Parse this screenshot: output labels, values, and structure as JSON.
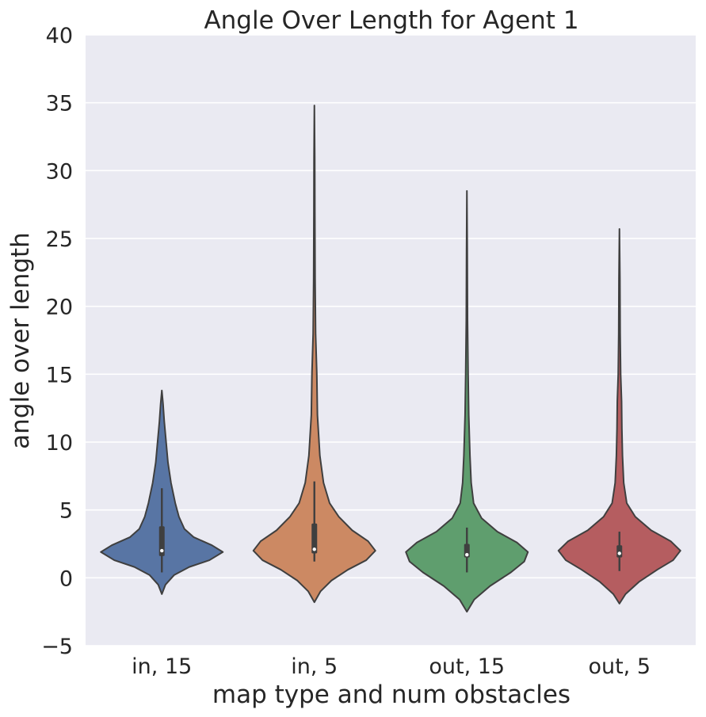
{
  "chart_data": {
    "type": "violin",
    "title": "Angle Over Length for Agent 1",
    "xlabel": "map type and num obstacles",
    "ylabel": "angle over length",
    "ylim": [
      -5,
      40
    ],
    "yticks": [
      -5,
      0,
      5,
      10,
      15,
      20,
      25,
      30,
      35,
      40
    ],
    "ytick_labels": [
      "−5",
      "0",
      "5",
      "10",
      "15",
      "20",
      "25",
      "30",
      "35",
      "40"
    ],
    "categories": [
      "in, 15",
      "in, 5",
      "out, 15",
      "out, 5"
    ],
    "grid": true,
    "background": "#eaeaf2",
    "violins": [
      {
        "category": "in, 15",
        "color": "#5875a4",
        "min": -1.2,
        "max": 13.8,
        "q1": 1.6,
        "median": 2.0,
        "q3": 3.8,
        "whisker_low": 0.4,
        "whisker_high": 6.6,
        "density": [
          [
            -1.2,
            0.0
          ],
          [
            -0.5,
            0.06
          ],
          [
            0.2,
            0.2
          ],
          [
            0.8,
            0.45
          ],
          [
            1.3,
            0.78
          ],
          [
            1.9,
            1.0
          ],
          [
            2.4,
            0.82
          ],
          [
            3.0,
            0.52
          ],
          [
            3.6,
            0.37
          ],
          [
            4.5,
            0.28
          ],
          [
            5.5,
            0.22
          ],
          [
            7.0,
            0.15
          ],
          [
            8.5,
            0.1
          ],
          [
            10.0,
            0.07
          ],
          [
            11.5,
            0.04
          ],
          [
            12.8,
            0.02
          ],
          [
            13.8,
            0.0
          ]
        ]
      },
      {
        "category": "in, 5",
        "color": "#cc8963",
        "min": -1.8,
        "max": 34.8,
        "q1": 1.8,
        "median": 2.1,
        "q3": 4.0,
        "whisker_low": 1.2,
        "whisker_high": 7.1,
        "density": [
          [
            -1.8,
            0.0
          ],
          [
            -1.0,
            0.1
          ],
          [
            -0.2,
            0.28
          ],
          [
            0.6,
            0.55
          ],
          [
            1.3,
            0.85
          ],
          [
            2.0,
            1.0
          ],
          [
            2.7,
            0.88
          ],
          [
            3.5,
            0.62
          ],
          [
            4.5,
            0.4
          ],
          [
            5.5,
            0.25
          ],
          [
            7.0,
            0.15
          ],
          [
            9.0,
            0.09
          ],
          [
            12.0,
            0.05
          ],
          [
            15.0,
            0.04
          ],
          [
            18.0,
            0.02
          ],
          [
            22.0,
            0.012
          ],
          [
            27.0,
            0.008
          ],
          [
            31.0,
            0.006
          ],
          [
            34.8,
            0.0
          ]
        ]
      },
      {
        "category": "out, 15",
        "color": "#5f9e6e",
        "min": -2.5,
        "max": 28.5,
        "q1": 1.5,
        "median": 1.7,
        "q3": 2.5,
        "whisker_low": 0.4,
        "whisker_high": 3.7,
        "density": [
          [
            -2.5,
            0.0
          ],
          [
            -1.6,
            0.12
          ],
          [
            -0.6,
            0.38
          ],
          [
            0.4,
            0.72
          ],
          [
            1.2,
            0.94
          ],
          [
            1.9,
            1.0
          ],
          [
            2.6,
            0.82
          ],
          [
            3.4,
            0.5
          ],
          [
            4.4,
            0.24
          ],
          [
            5.5,
            0.11
          ],
          [
            7.0,
            0.07
          ],
          [
            9.0,
            0.05
          ],
          [
            12.0,
            0.03
          ],
          [
            15.0,
            0.02
          ],
          [
            19.0,
            0.01
          ],
          [
            24.0,
            0.006
          ],
          [
            28.5,
            0.0
          ]
        ]
      },
      {
        "category": "out, 5",
        "color": "#b55d60",
        "min": -1.9,
        "max": 25.7,
        "q1": 1.5,
        "median": 1.8,
        "q3": 2.4,
        "whisker_low": 0.5,
        "whisker_high": 3.4,
        "density": [
          [
            -1.9,
            0.0
          ],
          [
            -1.2,
            0.1
          ],
          [
            -0.3,
            0.32
          ],
          [
            0.6,
            0.62
          ],
          [
            1.3,
            0.88
          ],
          [
            2.0,
            1.0
          ],
          [
            2.7,
            0.84
          ],
          [
            3.5,
            0.52
          ],
          [
            4.5,
            0.26
          ],
          [
            5.5,
            0.12
          ],
          [
            7.0,
            0.07
          ],
          [
            9.0,
            0.05
          ],
          [
            11.0,
            0.04
          ],
          [
            13.0,
            0.035
          ],
          [
            15.0,
            0.02
          ],
          [
            18.0,
            0.012
          ],
          [
            22.0,
            0.008
          ],
          [
            25.7,
            0.0
          ]
        ]
      }
    ]
  }
}
